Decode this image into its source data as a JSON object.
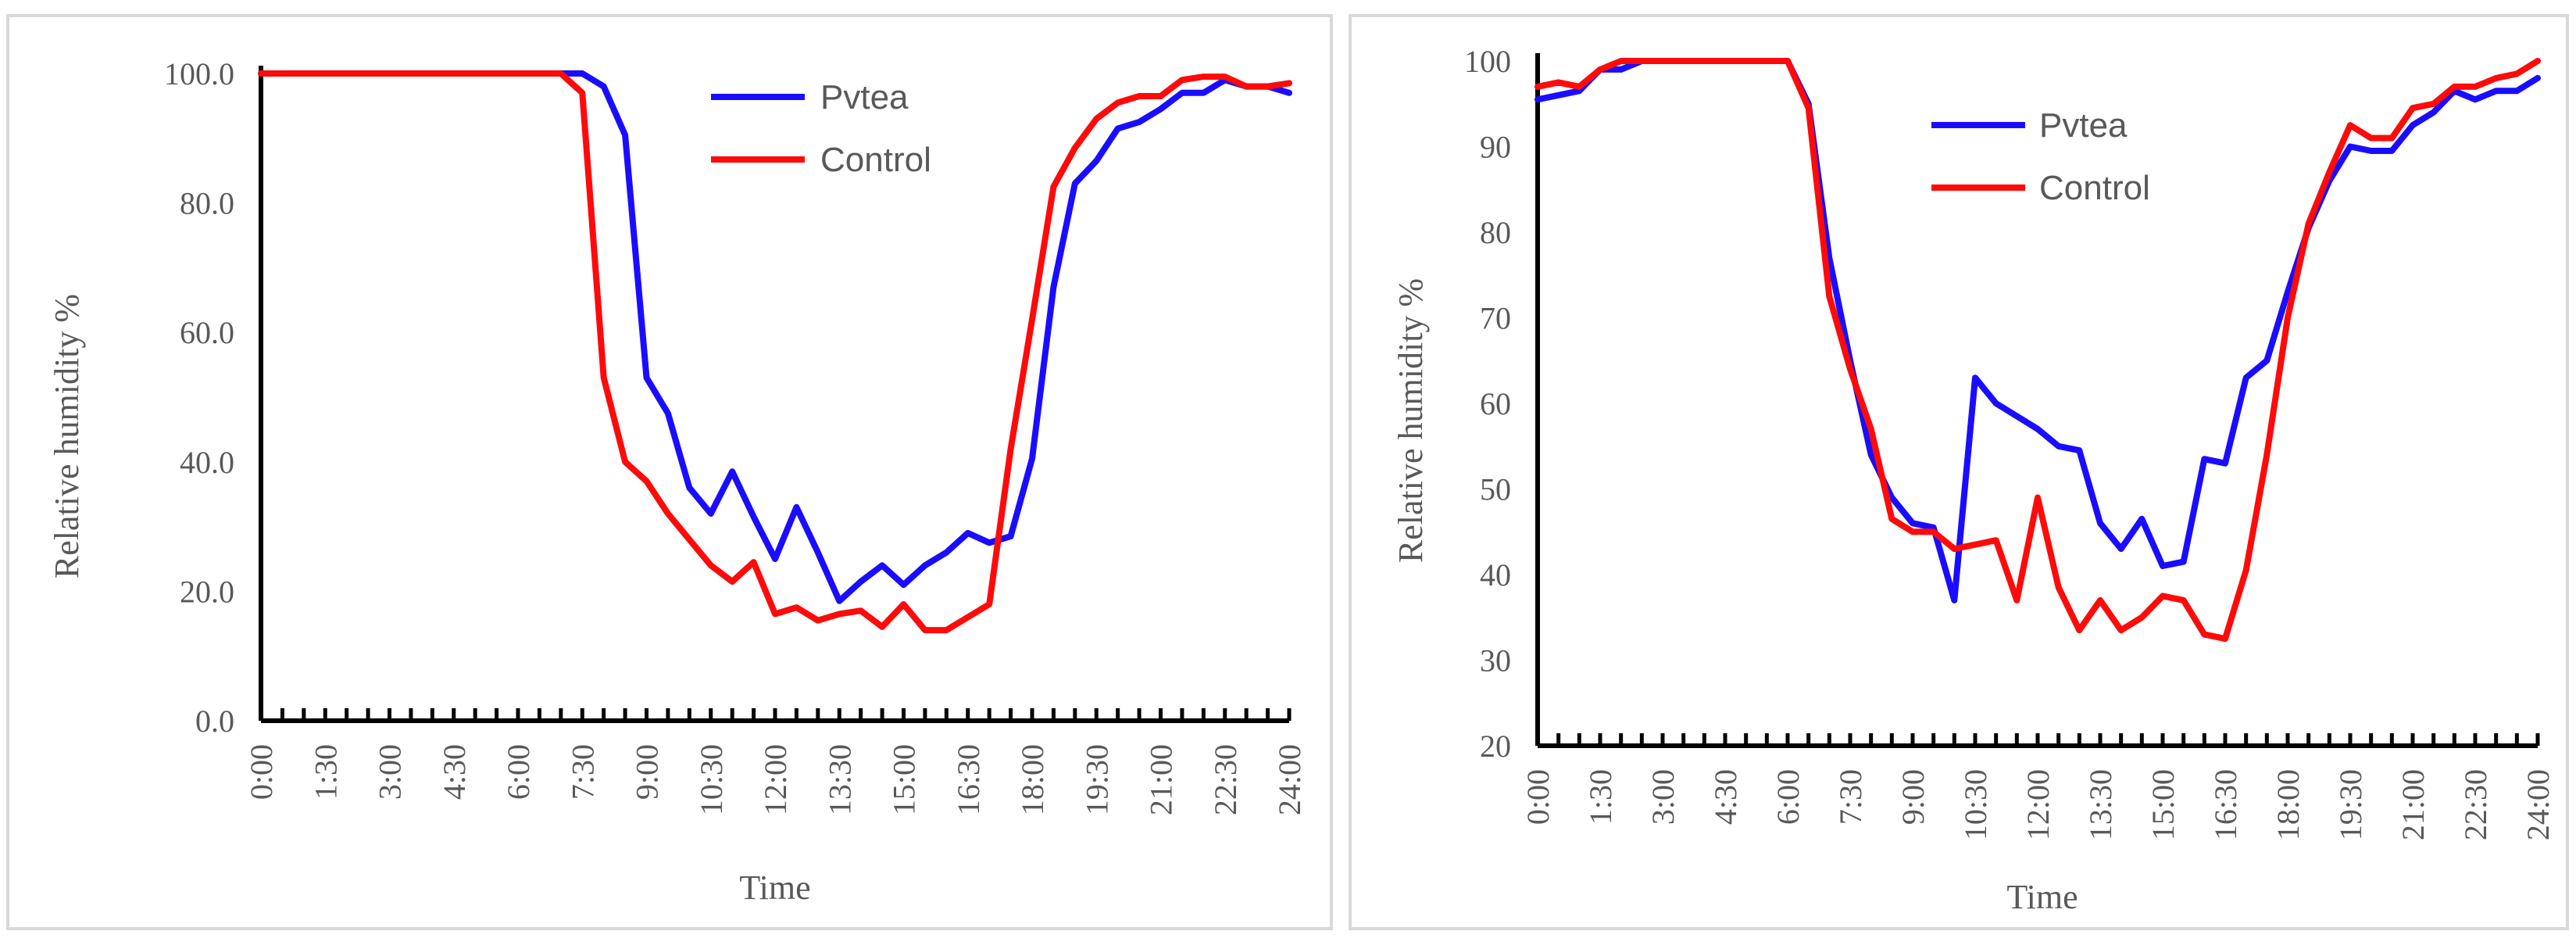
{
  "chart_data": [
    {
      "type": "line",
      "title": "",
      "xlabel": "Time",
      "ylabel": "Relative humidity %",
      "ylim": [
        0,
        100
      ],
      "yticks": [
        "0.0",
        "20.0",
        "40.0",
        "60.0",
        "80.0",
        "100.0"
      ],
      "xtick_labels": [
        "0:00",
        "1:30",
        "3:00",
        "4:30",
        "6:00",
        "7:30",
        "9:00",
        "10:30",
        "12:00",
        "13:30",
        "15:00",
        "16:30",
        "18:00",
        "19:30",
        "21:00",
        "22:30",
        "24:00"
      ],
      "xlim": [
        0,
        24
      ],
      "grid": false,
      "legend_position": "top-right",
      "series": [
        {
          "name": "Pvtea",
          "color": "#1a0dff",
          "x": [
            0,
            0.5,
            1,
            1.5,
            2,
            2.5,
            3,
            3.5,
            4,
            4.5,
            5,
            5.5,
            6,
            6.5,
            7,
            7.5,
            8,
            8.5,
            9,
            9.5,
            10,
            10.5,
            11,
            11.5,
            12,
            12.5,
            13,
            13.5,
            14,
            14.5,
            15,
            15.5,
            16,
            16.5,
            17,
            17.5,
            18,
            18.5,
            19,
            19.5,
            20,
            20.5,
            21,
            21.5,
            22,
            22.5,
            23,
            23.5,
            24
          ],
          "values": [
            100,
            100,
            100,
            100,
            100,
            100,
            100,
            100,
            100,
            100,
            100,
            100,
            100,
            100,
            100,
            100,
            98,
            90.5,
            53,
            47.5,
            36,
            32,
            38.5,
            31.5,
            25,
            33,
            26,
            18.5,
            21.5,
            24,
            21,
            24,
            26,
            29,
            27.5,
            28.5,
            40.5,
            67,
            83,
            86.5,
            91.5,
            92.5,
            94.5,
            97,
            97,
            99,
            98,
            98,
            97
          ]
        },
        {
          "name": "Control",
          "color": "#ff0a0a",
          "x": [
            0,
            0.5,
            1,
            1.5,
            2,
            2.5,
            3,
            3.5,
            4,
            4.5,
            5,
            5.5,
            6,
            6.5,
            7,
            7.5,
            8,
            8.5,
            9,
            9.5,
            10,
            10.5,
            11,
            11.5,
            12,
            12.5,
            13,
            13.5,
            14,
            14.5,
            15,
            15.5,
            16,
            16.5,
            17,
            17.5,
            18,
            18.5,
            19,
            19.5,
            20,
            20.5,
            21,
            21.5,
            22,
            22.5,
            23,
            23.5,
            24
          ],
          "values": [
            100,
            100,
            100,
            100,
            100,
            100,
            100,
            100,
            100,
            100,
            100,
            100,
            100,
            100,
            100,
            97,
            53,
            40,
            37,
            32,
            28,
            24,
            21.5,
            24.5,
            16.5,
            17.5,
            15.5,
            16.5,
            17,
            14.5,
            18,
            14,
            14,
            16,
            18,
            42,
            62,
            82.5,
            88.5,
            93,
            95.5,
            96.5,
            96.5,
            99,
            99.5,
            99.5,
            98,
            98,
            98.5
          ]
        }
      ]
    },
    {
      "type": "line",
      "title": "",
      "xlabel": "Time",
      "ylabel": "Relative humidity %",
      "ylim": [
        20,
        100
      ],
      "yticks": [
        "20",
        "30",
        "40",
        "50",
        "60",
        "70",
        "80",
        "90",
        "100"
      ],
      "xtick_labels": [
        "0:00",
        "1:30",
        "3:00",
        "4:30",
        "6:00",
        "7:30",
        "9:00",
        "10:30",
        "12:00",
        "13:30",
        "15:00",
        "16:30",
        "18:00",
        "19:30",
        "21:00",
        "22:30",
        "24:00"
      ],
      "xlim": [
        0,
        24
      ],
      "grid": false,
      "legend_position": "top-right",
      "series": [
        {
          "name": "Pvtea",
          "color": "#1a0dff",
          "x": [
            0,
            0.5,
            1,
            1.5,
            2,
            2.5,
            3,
            3.5,
            4,
            4.5,
            5,
            5.5,
            6,
            6.5,
            7,
            7.5,
            8,
            8.5,
            9,
            9.5,
            10,
            10.5,
            11,
            11.5,
            12,
            12.5,
            13,
            13.5,
            14,
            14.5,
            15,
            15.5,
            16,
            16.5,
            17,
            17.5,
            18,
            18.5,
            19,
            19.5,
            20,
            20.5,
            21,
            21.5,
            22,
            22.5,
            23,
            23.5,
            24
          ],
          "values": [
            95.5,
            96,
            96.5,
            99,
            99,
            100,
            100,
            100,
            100,
            100,
            100,
            100,
            100,
            95,
            77,
            65,
            54,
            49,
            46,
            45.5,
            37,
            63,
            60,
            58.5,
            57,
            55,
            54.5,
            46,
            43,
            46.5,
            41,
            41.5,
            53.5,
            53,
            63,
            65,
            73,
            80.5,
            86,
            90,
            89.5,
            89.5,
            92.5,
            94,
            96.5,
            95.5,
            96.5,
            96.5,
            98
          ]
        },
        {
          "name": "Control",
          "color": "#ff0a0a",
          "x": [
            0,
            0.5,
            1,
            1.5,
            2,
            2.5,
            3,
            3.5,
            4,
            4.5,
            5,
            5.5,
            6,
            6.5,
            7,
            7.5,
            8,
            8.5,
            9,
            9.5,
            10,
            10.5,
            11,
            11.5,
            12,
            12.5,
            13,
            13.5,
            14,
            14.5,
            15,
            15.5,
            16,
            16.5,
            17,
            17.5,
            18,
            18.5,
            19,
            19.5,
            20,
            20.5,
            21,
            21.5,
            22,
            22.5,
            23,
            23.5,
            24
          ],
          "values": [
            97,
            97.5,
            97,
            99,
            100,
            100,
            100,
            100,
            100,
            100,
            100,
            100,
            100,
            94.5,
            72.5,
            64,
            57,
            46.5,
            45,
            45,
            43,
            43.5,
            44,
            37,
            49,
            38.5,
            33.5,
            37,
            33.5,
            35,
            37.5,
            37,
            33,
            32.5,
            40.5,
            54,
            70,
            81,
            87,
            92.5,
            91,
            91,
            94.5,
            95,
            97,
            97,
            98,
            98.5,
            100
          ]
        }
      ]
    }
  ]
}
